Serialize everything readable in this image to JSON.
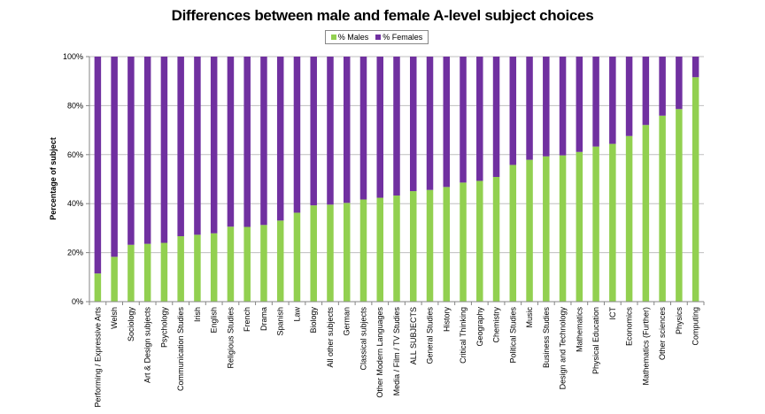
{
  "chart_data": {
    "type": "bar",
    "stacked": true,
    "percent_stacked": true,
    "title": "Differences between male and female A-level subject choices",
    "xlabel": "",
    "ylabel": "Percentage of subject",
    "ylim": [
      0,
      100
    ],
    "yticks": [
      "0%",
      "20%",
      "40%",
      "60%",
      "80%",
      "100%"
    ],
    "grid": true,
    "legend_position": "top-center",
    "categories": [
      "Performing / Expressive Arts",
      "Welsh",
      "Sociology",
      "Art & Design subjects",
      "Psychology",
      "Communication Studies",
      "Irish",
      "English",
      "Religious Studies",
      "French",
      "Drama",
      "Spanish",
      "Law",
      "Biology",
      "All other subjects",
      "German",
      "Classical subjects",
      "Other Modern Languages",
      "Media / Film / TV Studies",
      "ALL SUBJECTS",
      "General Studies",
      "History",
      "Critical Thinking",
      "Geography",
      "Chemistry",
      "Political Studies",
      "Music",
      "Business Studies",
      "Design and Technology",
      "Mathematics",
      "Physical Education",
      "ICT",
      "Economics",
      "Mathematics (Further)",
      "Other sciences",
      "Physics",
      "Computing"
    ],
    "series": [
      {
        "name": "% Males",
        "color": "#92d050",
        "values": [
          11.5,
          18.3,
          23.2,
          23.6,
          24.0,
          26.7,
          27.3,
          27.9,
          30.6,
          30.5,
          31.3,
          33.1,
          36.3,
          39.3,
          39.6,
          40.3,
          41.7,
          42.4,
          43.3,
          45.1,
          45.6,
          46.8,
          48.6,
          49.3,
          50.9,
          55.8,
          57.9,
          59.3,
          59.7,
          61.1,
          63.3,
          64.4,
          67.6,
          72.1,
          75.9,
          78.6,
          91.6
        ]
      },
      {
        "name": "% Females",
        "color": "#7030a0",
        "values": [
          88.5,
          81.7,
          76.8,
          76.4,
          76.0,
          73.3,
          72.7,
          72.1,
          69.4,
          69.5,
          68.7,
          66.9,
          63.7,
          60.7,
          60.4,
          59.7,
          58.3,
          57.6,
          56.7,
          54.9,
          54.4,
          53.2,
          51.4,
          50.7,
          49.1,
          44.2,
          42.1,
          40.7,
          40.3,
          38.9,
          36.7,
          35.6,
          32.4,
          27.9,
          24.1,
          21.4,
          8.4
        ]
      }
    ]
  }
}
